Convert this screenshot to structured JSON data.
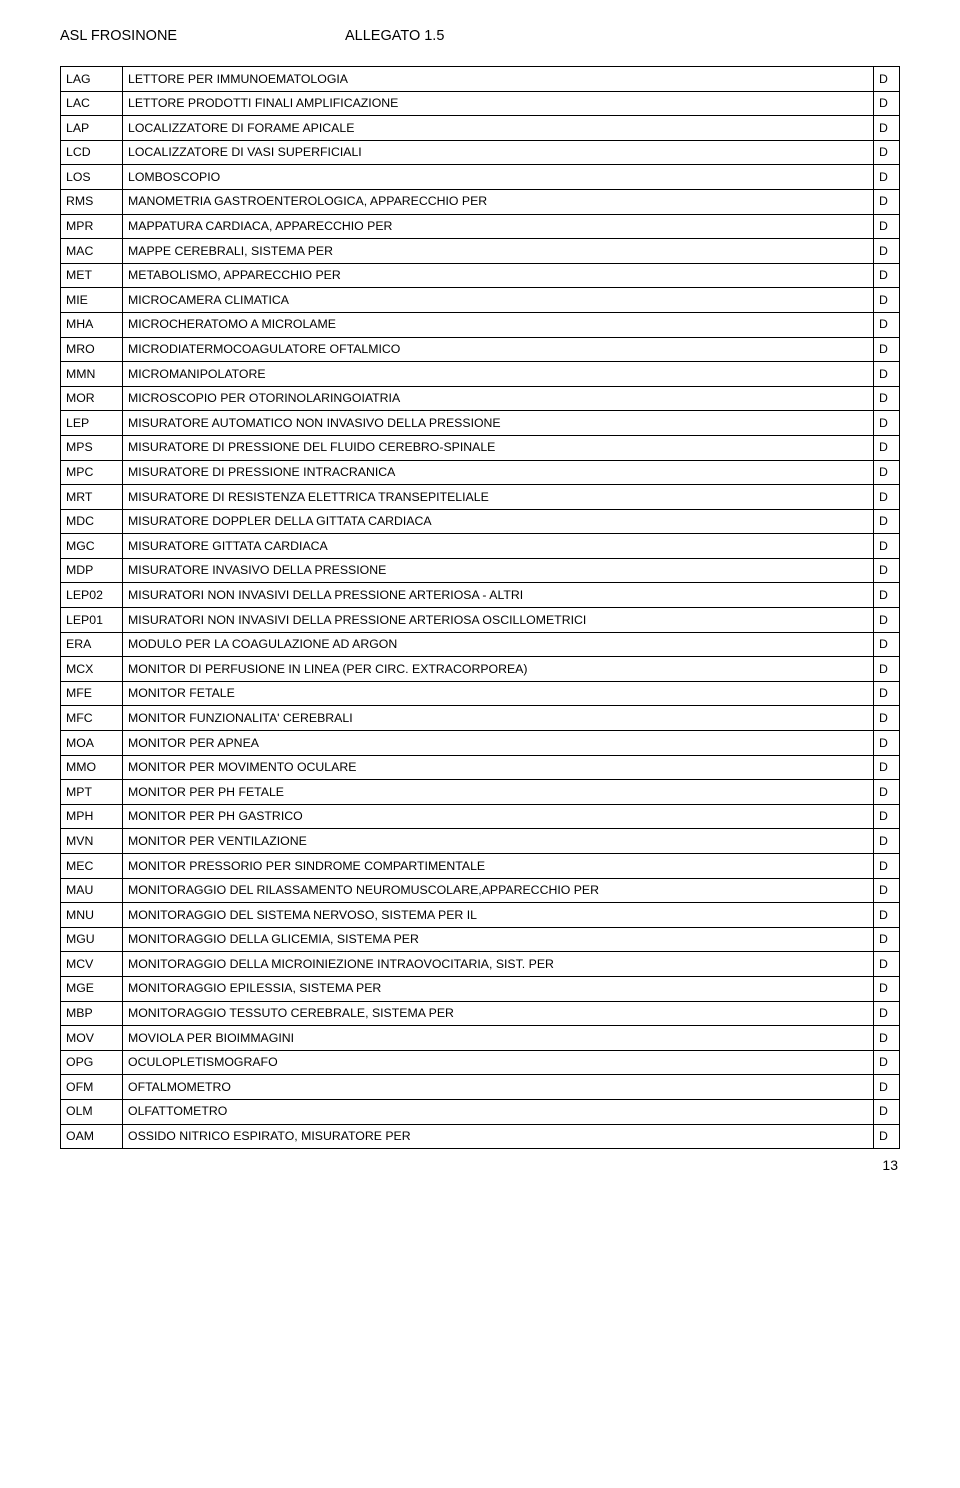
{
  "header": {
    "left": "ASL FROSINONE",
    "right": "ALLEGATO 1.5"
  },
  "page_number": "13",
  "rows": [
    {
      "c": "LAG",
      "d": "LETTORE PER IMMUNOEMATOLOGIA",
      "f": "D"
    },
    {
      "c": "LAC",
      "d": "LETTORE PRODOTTI FINALI AMPLIFICAZIONE",
      "f": "D"
    },
    {
      "c": "LAP",
      "d": "LOCALIZZATORE DI FORAME APICALE",
      "f": "D"
    },
    {
      "c": "LCD",
      "d": "LOCALIZZATORE DI VASI SUPERFICIALI",
      "f": "D"
    },
    {
      "c": "LOS",
      "d": "LOMBOSCOPIO",
      "f": "D"
    },
    {
      "c": "RMS",
      "d": "MANOMETRIA GASTROENTEROLOGICA, APPARECCHIO PER",
      "f": "D"
    },
    {
      "c": "MPR",
      "d": "MAPPATURA CARDIACA, APPARECCHIO PER",
      "f": "D"
    },
    {
      "c": "MAC",
      "d": "MAPPE CEREBRALI, SISTEMA PER",
      "f": "D"
    },
    {
      "c": "MET",
      "d": "METABOLISMO, APPARECCHIO PER",
      "f": "D"
    },
    {
      "c": "MIE",
      "d": "MICROCAMERA CLIMATICA",
      "f": "D"
    },
    {
      "c": "MHA",
      "d": "MICROCHERATOMO A MICROLAME",
      "f": "D"
    },
    {
      "c": "MRO",
      "d": "MICRODIATERMOCOAGULATORE OFTALMICO",
      "f": "D"
    },
    {
      "c": "MMN",
      "d": "MICROMANIPOLATORE",
      "f": "D"
    },
    {
      "c": "MOR",
      "d": "MICROSCOPIO PER OTORINOLARINGOIATRIA",
      "f": "D"
    },
    {
      "c": "LEP",
      "d": "MISURATORE AUTOMATICO NON INVASIVO DELLA PRESSIONE",
      "f": "D"
    },
    {
      "c": "MPS",
      "d": "MISURATORE DI PRESSIONE DEL FLUIDO CEREBRO-SPINALE",
      "f": "D"
    },
    {
      "c": "MPC",
      "d": "MISURATORE DI PRESSIONE INTRACRANICA",
      "f": "D"
    },
    {
      "c": "MRT",
      "d": "MISURATORE DI RESISTENZA ELETTRICA TRANSEPITELIALE",
      "f": "D"
    },
    {
      "c": "MDC",
      "d": "MISURATORE DOPPLER DELLA GITTATA CARDIACA",
      "f": "D"
    },
    {
      "c": "MGC",
      "d": "MISURATORE GITTATA CARDIACA",
      "f": "D"
    },
    {
      "c": "MDP",
      "d": "MISURATORE INVASIVO DELLA PRESSIONE",
      "f": "D"
    },
    {
      "c": "LEP02",
      "d": "MISURATORI NON INVASIVI DELLA PRESSIONE ARTERIOSA - ALTRI",
      "f": "D"
    },
    {
      "c": "LEP01",
      "d": "MISURATORI NON INVASIVI DELLA PRESSIONE ARTERIOSA OSCILLOMETRICI",
      "f": "D"
    },
    {
      "c": "ERA",
      "d": "MODULO PER LA COAGULAZIONE AD ARGON",
      "f": "D"
    },
    {
      "c": "MCX",
      "d": "MONITOR DI PERFUSIONE IN LINEA (PER CIRC. EXTRACORPOREA)",
      "f": "D"
    },
    {
      "c": "MFE",
      "d": "MONITOR FETALE",
      "f": "D"
    },
    {
      "c": "MFC",
      "d": "MONITOR FUNZIONALITA' CEREBRALI",
      "f": "D"
    },
    {
      "c": "MOA",
      "d": "MONITOR PER APNEA",
      "f": "D"
    },
    {
      "c": "MMO",
      "d": "MONITOR PER MOVIMENTO OCULARE",
      "f": "D"
    },
    {
      "c": "MPT",
      "d": "MONITOR PER PH FETALE",
      "f": "D"
    },
    {
      "c": "MPH",
      "d": "MONITOR PER PH GASTRICO",
      "f": "D"
    },
    {
      "c": "MVN",
      "d": "MONITOR PER VENTILAZIONE",
      "f": "D"
    },
    {
      "c": "MEC",
      "d": "MONITOR PRESSORIO PER SINDROME COMPARTIMENTALE",
      "f": "D"
    },
    {
      "c": "MAU",
      "d": "MONITORAGGIO DEL RILASSAMENTO NEUROMUSCOLARE,APPARECCHIO PER",
      "f": "D"
    },
    {
      "c": "MNU",
      "d": "MONITORAGGIO DEL SISTEMA NERVOSO, SISTEMA PER IL",
      "f": "D"
    },
    {
      "c": "MGU",
      "d": "MONITORAGGIO DELLA GLICEMIA, SISTEMA PER",
      "f": "D"
    },
    {
      "c": "MCV",
      "d": "MONITORAGGIO DELLA MICROINIEZIONE INTRAOVOCITARIA, SIST. PER",
      "f": "D"
    },
    {
      "c": "MGE",
      "d": "MONITORAGGIO EPILESSIA, SISTEMA PER",
      "f": "D"
    },
    {
      "c": "MBP",
      "d": "MONITORAGGIO TESSUTO CEREBRALE, SISTEMA PER",
      "f": "D"
    },
    {
      "c": "MOV",
      "d": "MOVIOLA PER BIOIMMAGINI",
      "f": "D"
    },
    {
      "c": "OPG",
      "d": "OCULOPLETISMOGRAFO",
      "f": "D"
    },
    {
      "c": "OFM",
      "d": "OFTALMOMETRO",
      "f": "D"
    },
    {
      "c": "OLM",
      "d": "OLFATTOMETRO",
      "f": "D"
    },
    {
      "c": "OAM",
      "d": "OSSIDO NITRICO ESPIRATO, MISURATORE PER",
      "f": "D"
    }
  ]
}
